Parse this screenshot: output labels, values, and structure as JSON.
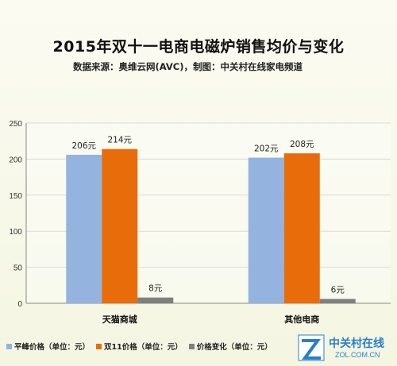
{
  "chart_data": {
    "type": "bar",
    "title": "2015年双十一电商电磁炉销售均价与变化",
    "subtitle": "数据来源：奥维云网(AVC)，制图：中关村在线家电频道",
    "categories": [
      "天猫商城",
      "其他电商"
    ],
    "series": [
      {
        "name": "平峰价格（单位：元）",
        "values": [
          206,
          202
        ],
        "labels": [
          "206元",
          "202元"
        ],
        "color": "#94b3df"
      },
      {
        "name": "双11价格（单位：元）",
        "values": [
          214,
          208
        ],
        "labels": [
          "214元",
          "208元"
        ],
        "color": "#e86d0a"
      },
      {
        "name": "价格变化（单位：元）",
        "values": [
          8,
          6
        ],
        "labels": [
          "8元",
          "6元"
        ],
        "color": "#7f7f7f"
      }
    ],
    "y_ticks": [
      "0",
      "50",
      "100",
      "150",
      "200",
      "250"
    ],
    "ylim": [
      0,
      250
    ],
    "grid": true,
    "legend_position": "bottom"
  },
  "logo": {
    "text": "中关村在线",
    "sub": "ZOL.COM.CN"
  }
}
